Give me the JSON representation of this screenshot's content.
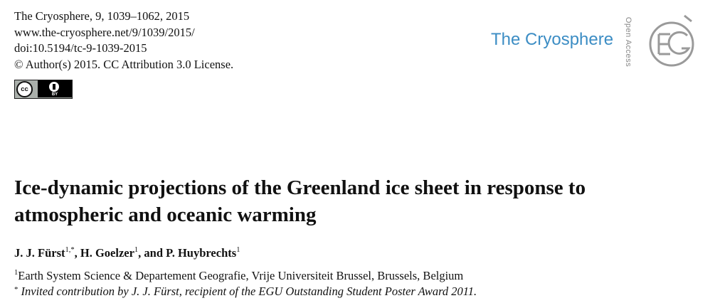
{
  "header": {
    "citation": "The Cryosphere, 9, 1039–1062, 2015",
    "url": "www.the-cryosphere.net/9/1039/2015/",
    "doi": "doi:10.5194/tc-9-1039-2015",
    "license": "© Author(s) 2015. CC Attribution 3.0 License.",
    "cc_badge": {
      "cc_text": "cc",
      "by_text": "BY"
    }
  },
  "journal": {
    "name": "The Cryosphere",
    "open_access": "Open Access",
    "logo_icon": "egu-globe-logo",
    "accent_color": "#3c8dc4"
  },
  "article": {
    "title_line1": "Ice-dynamic projections of the Greenland ice sheet in response to",
    "title_line2": "atmospheric and oceanic warming",
    "authors": [
      {
        "name": "J. J. Fürst",
        "sup": "1,*",
        "sep": ", "
      },
      {
        "name": "H. Goelzer",
        "sup": "1",
        "sep": ", and "
      },
      {
        "name": "P. Huybrechts",
        "sup": "1",
        "sep": ""
      }
    ],
    "affiliation": {
      "sup": "1",
      "text": "Earth System Science & Departement Geografie, Vrije Universiteit Brussel, Brussels, Belgium"
    },
    "note": {
      "marker": "*",
      "text": "Invited contribution by J. J. Fürst, recipient of the EGU Outstanding Student Poster Award 2011."
    }
  }
}
